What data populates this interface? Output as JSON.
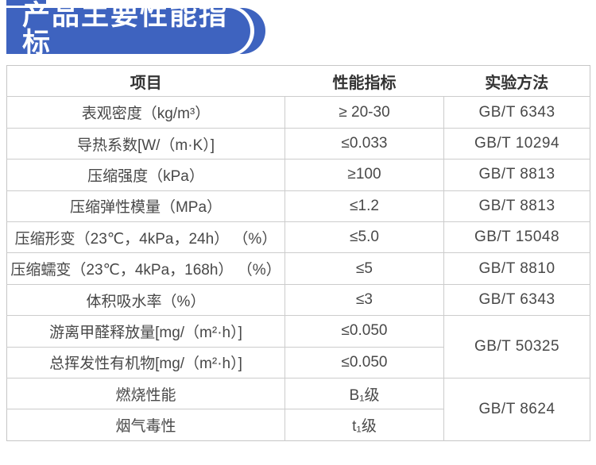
{
  "banner": {
    "title": "产品主要性能指标",
    "accent_color": "#3e63bf"
  },
  "table": {
    "headers": {
      "item": "项目",
      "value": "性能指标",
      "method": "实验方法"
    },
    "rows": [
      {
        "item": "表观密度（kg/m³）",
        "value": "≥ 20-30",
        "method": "GB/T 6343"
      },
      {
        "item": "导热系数[W/（m·K）]",
        "value": "≤0.033",
        "method": "GB/T 10294"
      },
      {
        "item": "压缩强度（kPa）",
        "value": "≥100",
        "method": "GB/T 8813"
      },
      {
        "item": "压缩弹性模量（MPa）",
        "value": "≤1.2",
        "method": "GB/T 8813"
      },
      {
        "item": "压缩形变（23℃，4kPa，24h） （%）",
        "value": "≤5.0",
        "method": "GB/T 15048"
      },
      {
        "item": "压缩蠕变（23℃，4kPa，168h） （%）",
        "value": "≤5",
        "method": "GB/T 8810"
      },
      {
        "item": "体积吸水率（%）",
        "value": "≤3",
        "method": "GB/T 6343"
      },
      {
        "item": "游离甲醛释放量[mg/（m²·h）]",
        "value": "≤0.050",
        "method": "GB/T 50325"
      },
      {
        "item": "总挥发性有机物[mg/（m²·h）]",
        "value": "≤0.050",
        "method": ""
      },
      {
        "item": "燃烧性能",
        "value": "B₁级",
        "method": "GB/T 8624"
      },
      {
        "item": "烟气毒性",
        "value": "t₁级",
        "method": ""
      }
    ]
  }
}
